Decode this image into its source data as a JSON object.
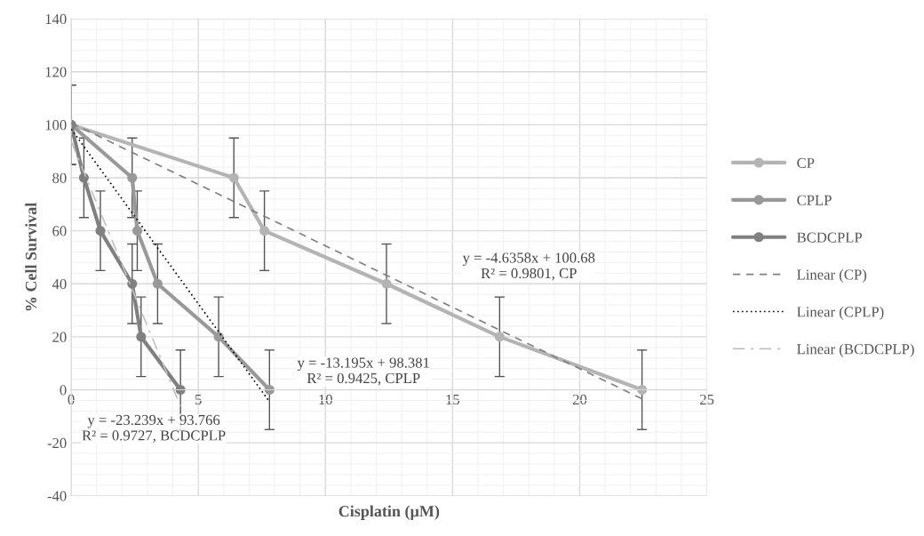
{
  "chart_data": {
    "type": "line",
    "xlabel": "Cisplatin (µM)",
    "ylabel": "% Cell Survival",
    "xlim": [
      0,
      25
    ],
    "xticks": [
      0,
      5,
      10,
      15,
      20,
      25
    ],
    "ylim": [
      -40,
      140
    ],
    "yticks": [
      -40,
      -20,
      0,
      20,
      40,
      60,
      80,
      100,
      120,
      140
    ],
    "grid": true,
    "legend": "right",
    "marker": "circle",
    "series": [
      {
        "name": "CP",
        "color": "#b4b4b4",
        "x": [
          0,
          6.4,
          7.6,
          12.4,
          16.85,
          22.45
        ],
        "values": [
          100,
          80,
          60,
          40,
          20,
          0
        ],
        "errors": [
          15,
          15,
          15,
          15,
          15,
          15
        ]
      },
      {
        "name": "CPLP",
        "color": "#999999",
        "x": [
          0,
          2.4,
          2.6,
          3.4,
          5.8,
          7.8
        ],
        "values": [
          100,
          80,
          60,
          40,
          20,
          0
        ],
        "errors": [
          15,
          15,
          15,
          15,
          15,
          15
        ]
      },
      {
        "name": "BCDCPLP",
        "color": "#808080",
        "x": [
          0,
          0.5,
          1.15,
          2.4,
          2.75,
          4.3
        ],
        "values": [
          100,
          80,
          60,
          40,
          20,
          0
        ],
        "errors": [
          15,
          15,
          15,
          15,
          15,
          15
        ]
      },
      {
        "name": "Linear (CP)",
        "type": "line",
        "color": "#808080",
        "line_style": "dashed",
        "marker": "none",
        "x": [
          0,
          22.45
        ],
        "values": [
          100.7,
          -3.4
        ]
      },
      {
        "name": "Linear (CPLP)",
        "type": "line",
        "color": "#000000",
        "line_style": "dotted",
        "marker": "none",
        "x": [
          0,
          7.8
        ],
        "values": [
          98.4,
          -4.5
        ]
      },
      {
        "name": "Linear (BCDCPLP)",
        "type": "line",
        "color": "#c0c0c0",
        "line_style": "dashdot",
        "marker": "none",
        "x": [
          0,
          4.3
        ],
        "values": [
          93.8,
          -6.2
        ]
      }
    ],
    "annotations": [
      "y = -4.6358x + 100.68\nR² = 0.9801, CP",
      "y = -13.195x + 98.381\nR² = 0.9425, CPLP",
      "y = -23.239x + 93.766\nR² = 0.9727, BCDCPLP"
    ]
  }
}
